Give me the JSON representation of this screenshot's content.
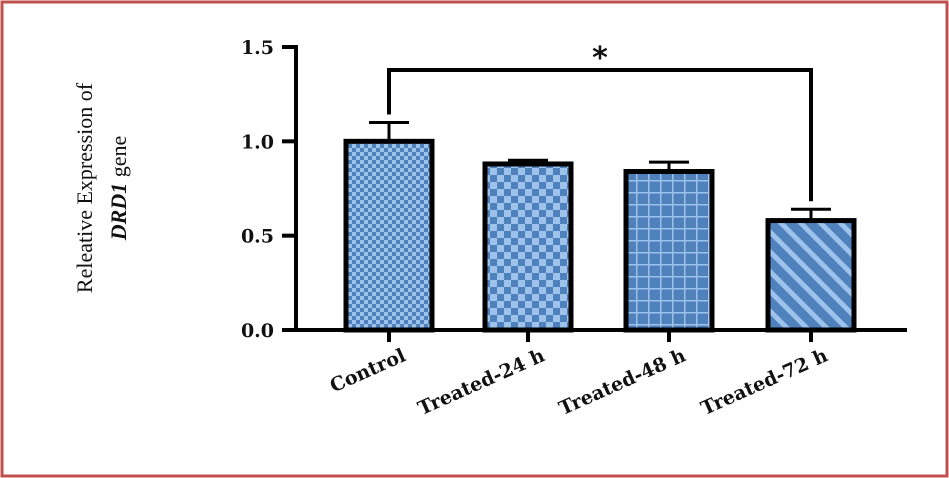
{
  "colors": {
    "frame_border": "#c0504d",
    "bar_fill": "#4f81bd",
    "bar_pattern_light": "#9dc3ec",
    "bar_outline": "#000000"
  },
  "chart_data": {
    "type": "bar",
    "categories": [
      "Control",
      "Treated-24 h",
      "Treated-48 h",
      "Treated-72 h"
    ],
    "values": [
      1.0,
      0.88,
      0.84,
      0.58
    ],
    "errors": [
      0.1,
      0.02,
      0.05,
      0.06
    ],
    "patterns": [
      "fine-checker",
      "checker",
      "grid",
      "diagonal"
    ],
    "ylabel_line1": "Releative Expression of",
    "ylabel_gene": "DRD1",
    "ylabel_suffix": " gene",
    "ylim": [
      0,
      1.5
    ],
    "yticks": [
      0.0,
      0.5,
      1.0,
      1.5
    ],
    "ytick_labels": [
      "0.0",
      "0.5",
      "1.0",
      "1.5"
    ],
    "significance": {
      "from": "Control",
      "to": "Treated-72 h",
      "label": "*"
    }
  }
}
